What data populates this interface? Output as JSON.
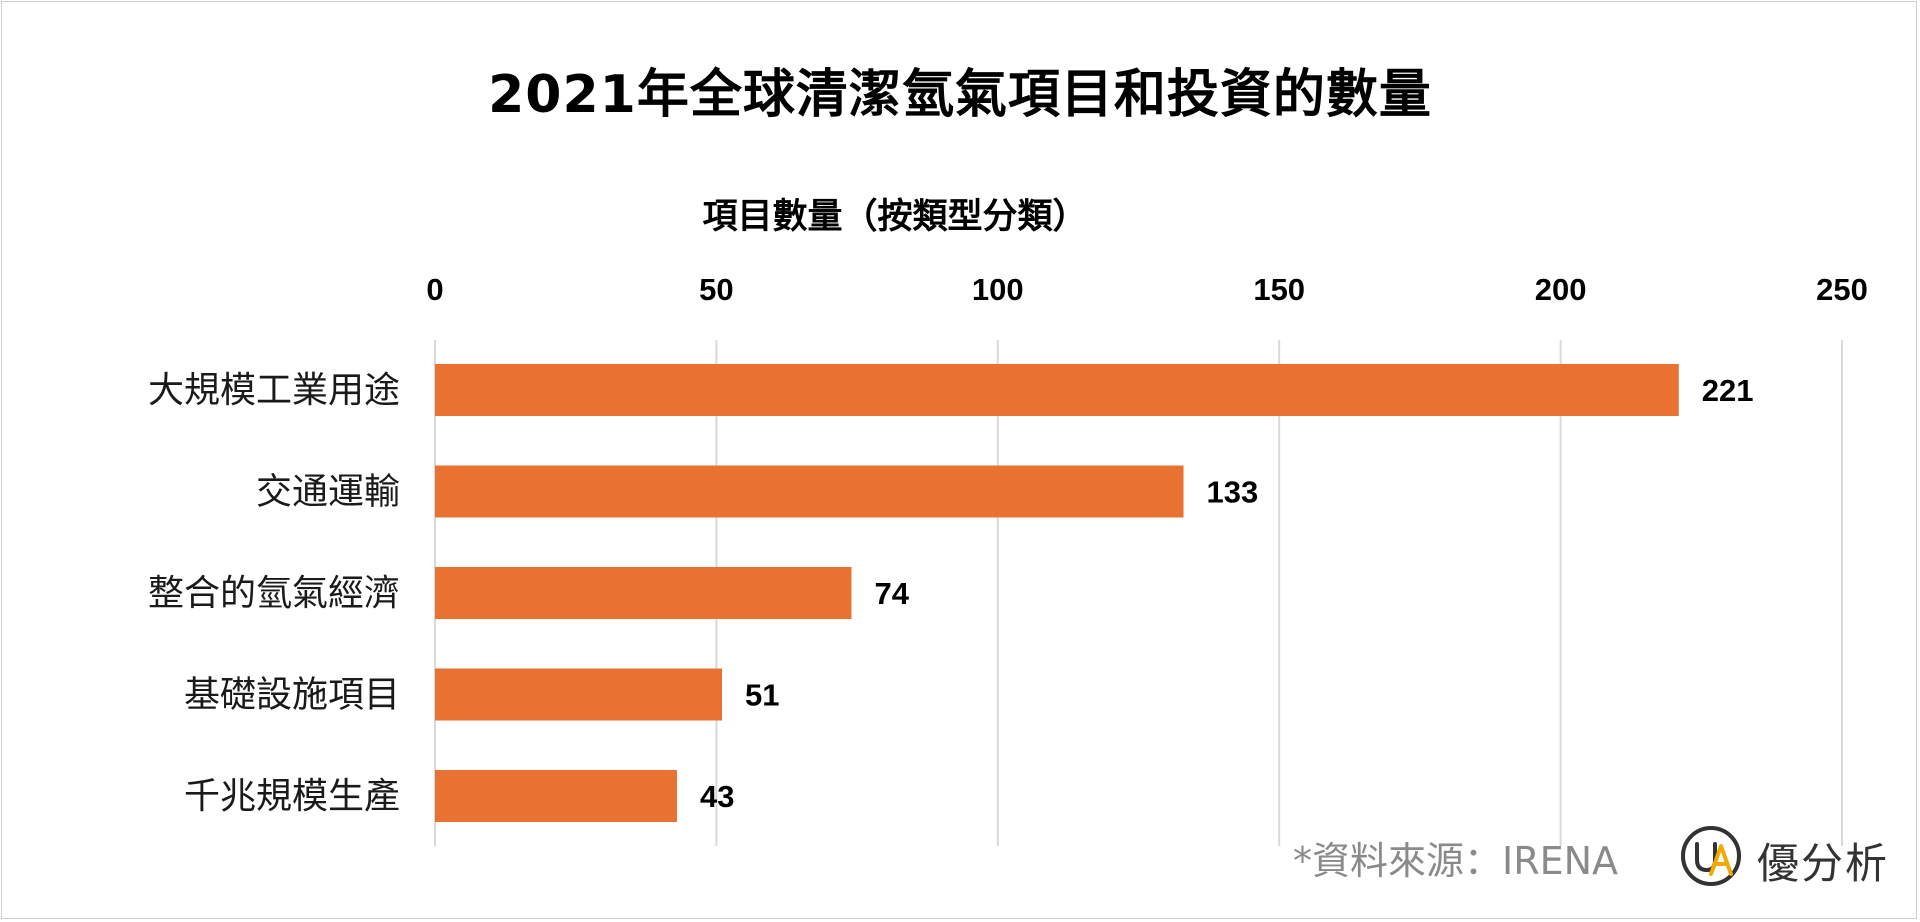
{
  "chart_data": {
    "type": "bar",
    "orientation": "horizontal",
    "title": "2021年全球清潔氫氣項目和投資的數量",
    "subtitle": "項目數量（按類型分類）",
    "categories": [
      "大規模工業用途",
      "交通運輸",
      "整合的氫氣經濟",
      "基礎設施項目",
      "千兆規模生產"
    ],
    "values": [
      221,
      133,
      74,
      51,
      43
    ],
    "xlim": [
      0,
      250
    ],
    "xticks": [
      0,
      50,
      100,
      150,
      200,
      250
    ],
    "x_axis_position": "top",
    "grid": true,
    "data_labels": true,
    "bar_color": "#E97132",
    "grid_color": "#d9d9d9"
  },
  "source_note": "*資料來源：IRENA",
  "logo": {
    "mark": "UA",
    "text": "優分析",
    "ring_color": "#333333",
    "accent_color": "#F2A900"
  }
}
